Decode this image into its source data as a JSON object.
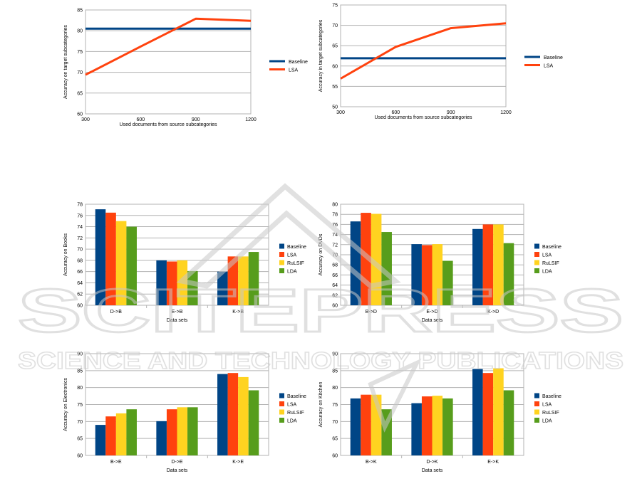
{
  "colors": {
    "baseline": "#004586",
    "lsa": "#ff420e",
    "rulsif": "#ffd320",
    "lda": "#579d1c",
    "grid": "#b3b3b3",
    "watermark": "#c8c8c8"
  },
  "watermark": {
    "line1": "SCITEPRESS",
    "line2": "SCIENCE AND TECHNOLOGY PUBLICATIONS"
  },
  "chart_data": [
    {
      "type": "line",
      "xlabel": "Used documents from source subcategories",
      "ylabel": "Accuracy on target subcategories",
      "x": [
        300,
        600,
        900,
        1200
      ],
      "ylim": [
        60,
        85
      ],
      "yticks": [
        60,
        65,
        70,
        75,
        80,
        85
      ],
      "series": [
        {
          "name": "Baseline",
          "values": [
            80.5,
            80.5,
            80.5,
            80.5
          ]
        },
        {
          "name": "LSA",
          "values": [
            69.4,
            76.2,
            82.9,
            82.4
          ]
        }
      ],
      "legend": "right"
    },
    {
      "type": "line",
      "xlabel": "Used documents from source subcategories",
      "ylabel": "Accuracy in target subcategories",
      "x": [
        300,
        600,
        900,
        1200
      ],
      "ylim": [
        50,
        75
      ],
      "yticks": [
        50,
        55,
        60,
        65,
        70,
        75
      ],
      "series": [
        {
          "name": "Baseline",
          "values": [
            61.9,
            61.9,
            61.9,
            61.9
          ]
        },
        {
          "name": "LSA",
          "values": [
            56.9,
            64.7,
            69.3,
            70.5
          ]
        }
      ],
      "legend": "right"
    },
    {
      "type": "bar",
      "xlabel": "Data sets",
      "ylabel": "Accuracy on Books",
      "categories": [
        "D->B",
        "E->B",
        "K->B"
      ],
      "ylim": [
        60,
        78
      ],
      "yticks": [
        60,
        62,
        64,
        66,
        68,
        70,
        72,
        74,
        76,
        78
      ],
      "series": [
        {
          "name": "Baseline",
          "values": [
            77.1,
            68.0,
            66.0
          ]
        },
        {
          "name": "LSA",
          "values": [
            76.5,
            67.8,
            68.7
          ]
        },
        {
          "name": "RuLSIF",
          "values": [
            75.0,
            68.0,
            68.7
          ]
        },
        {
          "name": "LDA",
          "values": [
            74.0,
            66.1,
            69.5
          ]
        }
      ],
      "legend": "right"
    },
    {
      "type": "bar",
      "xlabel": "Data sets",
      "ylabel": "Accuracy on DVDs",
      "categories": [
        "B->D",
        "E->D",
        "K->D"
      ],
      "ylim": [
        60,
        80
      ],
      "yticks": [
        60,
        62,
        64,
        66,
        68,
        70,
        72,
        74,
        76,
        78,
        80
      ],
      "series": [
        {
          "name": "Baseline",
          "values": [
            76.6,
            72.1,
            75.1
          ]
        },
        {
          "name": "LSA",
          "values": [
            78.3,
            71.9,
            76.0
          ]
        },
        {
          "name": "RuLSIF",
          "values": [
            78.1,
            72.1,
            76.0
          ]
        },
        {
          "name": "LDA",
          "values": [
            74.5,
            68.8,
            72.3
          ]
        }
      ],
      "legend": "right"
    },
    {
      "type": "bar",
      "xlabel": "Data sets",
      "ylabel": "Accuracy on Electronics",
      "categories": [
        "B->E",
        "D->E",
        "K->E"
      ],
      "ylim": [
        60,
        90
      ],
      "yticks": [
        60,
        65,
        70,
        75,
        80,
        85,
        90
      ],
      "series": [
        {
          "name": "Baseline",
          "values": [
            69.0,
            70.1,
            84.0
          ]
        },
        {
          "name": "LSA",
          "values": [
            71.5,
            73.6,
            84.3
          ]
        },
        {
          "name": "RuLSIF",
          "values": [
            72.4,
            74.2,
            83.1
          ]
        },
        {
          "name": "LDA",
          "values": [
            73.6,
            74.2,
            79.2
          ]
        }
      ],
      "legend": "right"
    },
    {
      "type": "bar",
      "xlabel": "Data sets",
      "ylabel": "Accuracy on Kitchen",
      "categories": [
        "B->K",
        "D->K",
        "E->K"
      ],
      "ylim": [
        60,
        90
      ],
      "yticks": [
        60,
        65,
        70,
        75,
        80,
        85,
        90
      ],
      "series": [
        {
          "name": "Baseline",
          "values": [
            76.8,
            75.4,
            85.5
          ]
        },
        {
          "name": "LSA",
          "values": [
            77.9,
            77.4,
            84.3
          ]
        },
        {
          "name": "RuLSIF",
          "values": [
            77.9,
            77.6,
            85.7
          ]
        },
        {
          "name": "LDA",
          "values": [
            73.6,
            76.8,
            79.2
          ]
        }
      ],
      "legend": "right"
    }
  ]
}
